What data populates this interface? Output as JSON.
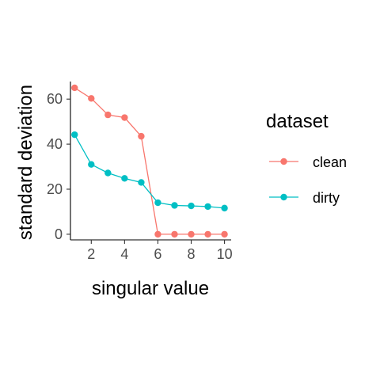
{
  "chart_data": {
    "type": "line",
    "xlabel": "singular value",
    "ylabel": "standard deviation",
    "x": [
      1,
      2,
      3,
      4,
      5,
      6,
      7,
      8,
      9,
      10
    ],
    "xlim": [
      0.75,
      10.4
    ],
    "ylim": [
      -2.5,
      67.8
    ],
    "xticks": [
      2,
      4,
      6,
      8,
      10
    ],
    "yticks": [
      0,
      20,
      40,
      60
    ],
    "grid": false,
    "legend": {
      "title": "dataset",
      "position": "right"
    },
    "series": [
      {
        "name": "clean",
        "color": "#F8766D",
        "values": [
          65,
          60.3,
          53,
          51.8,
          43.5,
          0,
          0,
          0,
          0,
          0
        ]
      },
      {
        "name": "dirty",
        "color": "#00BFC4",
        "values": [
          44.2,
          31,
          27.2,
          24.8,
          23,
          14,
          12.8,
          12.6,
          12.3,
          11.6
        ]
      }
    ]
  }
}
